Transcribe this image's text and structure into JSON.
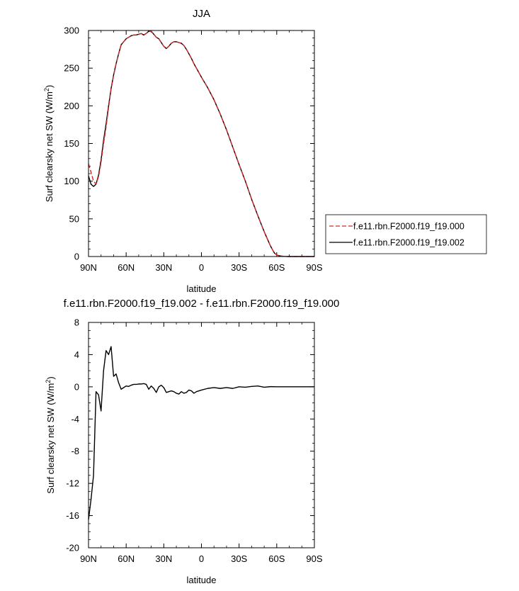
{
  "chart_data": [
    {
      "type": "line",
      "title": "JJA",
      "xlabel": "latitude",
      "ylabel": "Surf clearsky net SW (W/m",
      "ylabel_sup": "2",
      "ylabel_end": ")",
      "xlim": [
        90,
        -90
      ],
      "ylim": [
        0,
        300
      ],
      "xticks": [
        90,
        60,
        30,
        0,
        -30,
        -60,
        -90
      ],
      "xtick_labels": [
        "90N",
        "60N",
        "30N",
        "0",
        "30S",
        "60S",
        "90S"
      ],
      "yticks": [
        0,
        50,
        100,
        150,
        200,
        250,
        300
      ],
      "ytick_labels": [
        "0",
        "50",
        "100",
        "150",
        "200",
        "250",
        "300"
      ],
      "legend_position": "right",
      "series": [
        {
          "name": "f.e11.rbn.F2000.f19_f19.000",
          "color": "#d62728",
          "dash": "dashed",
          "x": [
            90,
            88,
            86,
            84,
            82,
            80,
            78,
            76,
            74,
            72,
            70,
            68,
            66,
            64,
            62,
            60,
            58,
            56,
            54,
            52,
            50,
            48,
            46,
            44,
            42,
            40,
            38,
            36,
            34,
            32,
            30,
            28,
            26,
            24,
            22,
            20,
            18,
            16,
            14,
            12,
            10,
            8,
            6,
            4,
            2,
            0,
            -5,
            -10,
            -15,
            -20,
            -25,
            -30,
            -35,
            -40,
            -45,
            -50,
            -55,
            -58,
            -60,
            -62,
            -64,
            -66,
            -68,
            -70,
            -75,
            -80,
            -85,
            -90
          ],
          "y": [
            123,
            112,
            100,
            96,
            106,
            125,
            150,
            172,
            198,
            222,
            240,
            256,
            269,
            281,
            285,
            289,
            291,
            293,
            294,
            294,
            295,
            296,
            294,
            296,
            299,
            299,
            295,
            291,
            289,
            284,
            279,
            276,
            279,
            283,
            285,
            285,
            284,
            283,
            280,
            275,
            269,
            263,
            256,
            250,
            244,
            238,
            224,
            208,
            189,
            168,
            145,
            122,
            100,
            76,
            54,
            33,
            14,
            5,
            2,
            1,
            0.5,
            0.2,
            0.1,
            0,
            0,
            0,
            0,
            0
          ]
        },
        {
          "name": "f.e11.rbn.F2000.f19_f19.002",
          "color": "#000000",
          "dash": "solid",
          "x": [
            90,
            88,
            86,
            84,
            82,
            80,
            78,
            76,
            74,
            72,
            70,
            68,
            66,
            64,
            62,
            60,
            58,
            56,
            54,
            52,
            50,
            48,
            46,
            44,
            42,
            40,
            38,
            36,
            34,
            32,
            30,
            28,
            26,
            24,
            22,
            20,
            18,
            16,
            14,
            12,
            10,
            8,
            6,
            4,
            2,
            0,
            -5,
            -10,
            -15,
            -20,
            -25,
            -30,
            -35,
            -40,
            -45,
            -50,
            -55,
            -58,
            -60,
            -62,
            -64,
            -66,
            -68,
            -70,
            -75,
            -80,
            -85,
            -90
          ],
          "y": [
            107,
            96,
            93,
            96,
            108,
            128,
            154,
            176,
            200,
            223,
            241,
            256,
            269,
            281,
            285,
            289,
            291,
            293,
            294,
            294,
            295,
            296,
            294,
            296,
            299,
            299,
            295,
            291,
            289,
            284,
            279,
            276,
            279,
            283,
            285,
            285,
            284,
            283,
            280,
            275,
            269,
            263,
            256,
            250,
            244,
            238,
            224,
            208,
            189,
            168,
            145,
            122,
            100,
            76,
            54,
            33,
            14,
            5,
            2,
            1,
            0.5,
            0.2,
            0.1,
            0,
            0,
            0,
            0,
            0
          ]
        }
      ]
    },
    {
      "type": "line",
      "title": "f.e11.rbn.F2000.f19_f19.002 - f.e11.rbn.F2000.f19_f19.000",
      "xlabel": "latitude",
      "ylabel": "Surf clearsky net SW (W/m",
      "ylabel_sup": "2",
      "ylabel_end": ")",
      "xlim": [
        90,
        -90
      ],
      "ylim": [
        -20,
        8
      ],
      "xticks": [
        90,
        60,
        30,
        0,
        -30,
        -60,
        -90
      ],
      "xtick_labels": [
        "90N",
        "60N",
        "30N",
        "0",
        "30S",
        "60S",
        "90S"
      ],
      "yticks": [
        8,
        4,
        0,
        -4,
        -8,
        -12,
        -16,
        -20
      ],
      "ytick_labels": [
        "8",
        "4",
        "0",
        "-4",
        "-8",
        "-12",
        "-16",
        "-20"
      ],
      "series": [
        {
          "color": "#000000",
          "dash": "solid",
          "x": [
            90,
            88,
            86,
            84,
            82,
            80,
            78,
            76,
            74,
            72,
            70,
            68,
            66,
            64,
            62,
            60,
            58,
            56,
            54,
            52,
            50,
            48,
            46,
            44,
            42,
            40,
            38,
            36,
            34,
            32,
            30,
            28,
            26,
            24,
            22,
            20,
            18,
            16,
            14,
            12,
            10,
            8,
            6,
            4,
            2,
            0,
            -5,
            -10,
            -15,
            -20,
            -25,
            -30,
            -35,
            -40,
            -45,
            -50,
            -55,
            -60,
            -65,
            -70,
            -75,
            -80,
            -85,
            -90
          ],
          "y": [
            -16.5,
            -14,
            -11,
            -0.6,
            -1,
            -3,
            2,
            4.5,
            4,
            5,
            1.3,
            1.6,
            0.5,
            -0.3,
            -0.1,
            0.1,
            0.05,
            0.2,
            0.3,
            0.3,
            0.35,
            0.35,
            0.4,
            0.3,
            -0.3,
            0.1,
            -0.2,
            -0.7,
            0,
            0.2,
            -0.1,
            -0.7,
            -0.6,
            -0.5,
            -0.6,
            -0.8,
            -0.9,
            -0.6,
            -0.8,
            -0.7,
            -0.4,
            -0.5,
            -0.8,
            -0.6,
            -0.5,
            -0.4,
            -0.2,
            -0.1,
            -0.2,
            -0.1,
            -0.2,
            0,
            -0.05,
            0.05,
            0.1,
            -0.05,
            0.02,
            0,
            0,
            0,
            0,
            0,
            0,
            0
          ]
        }
      ]
    }
  ]
}
